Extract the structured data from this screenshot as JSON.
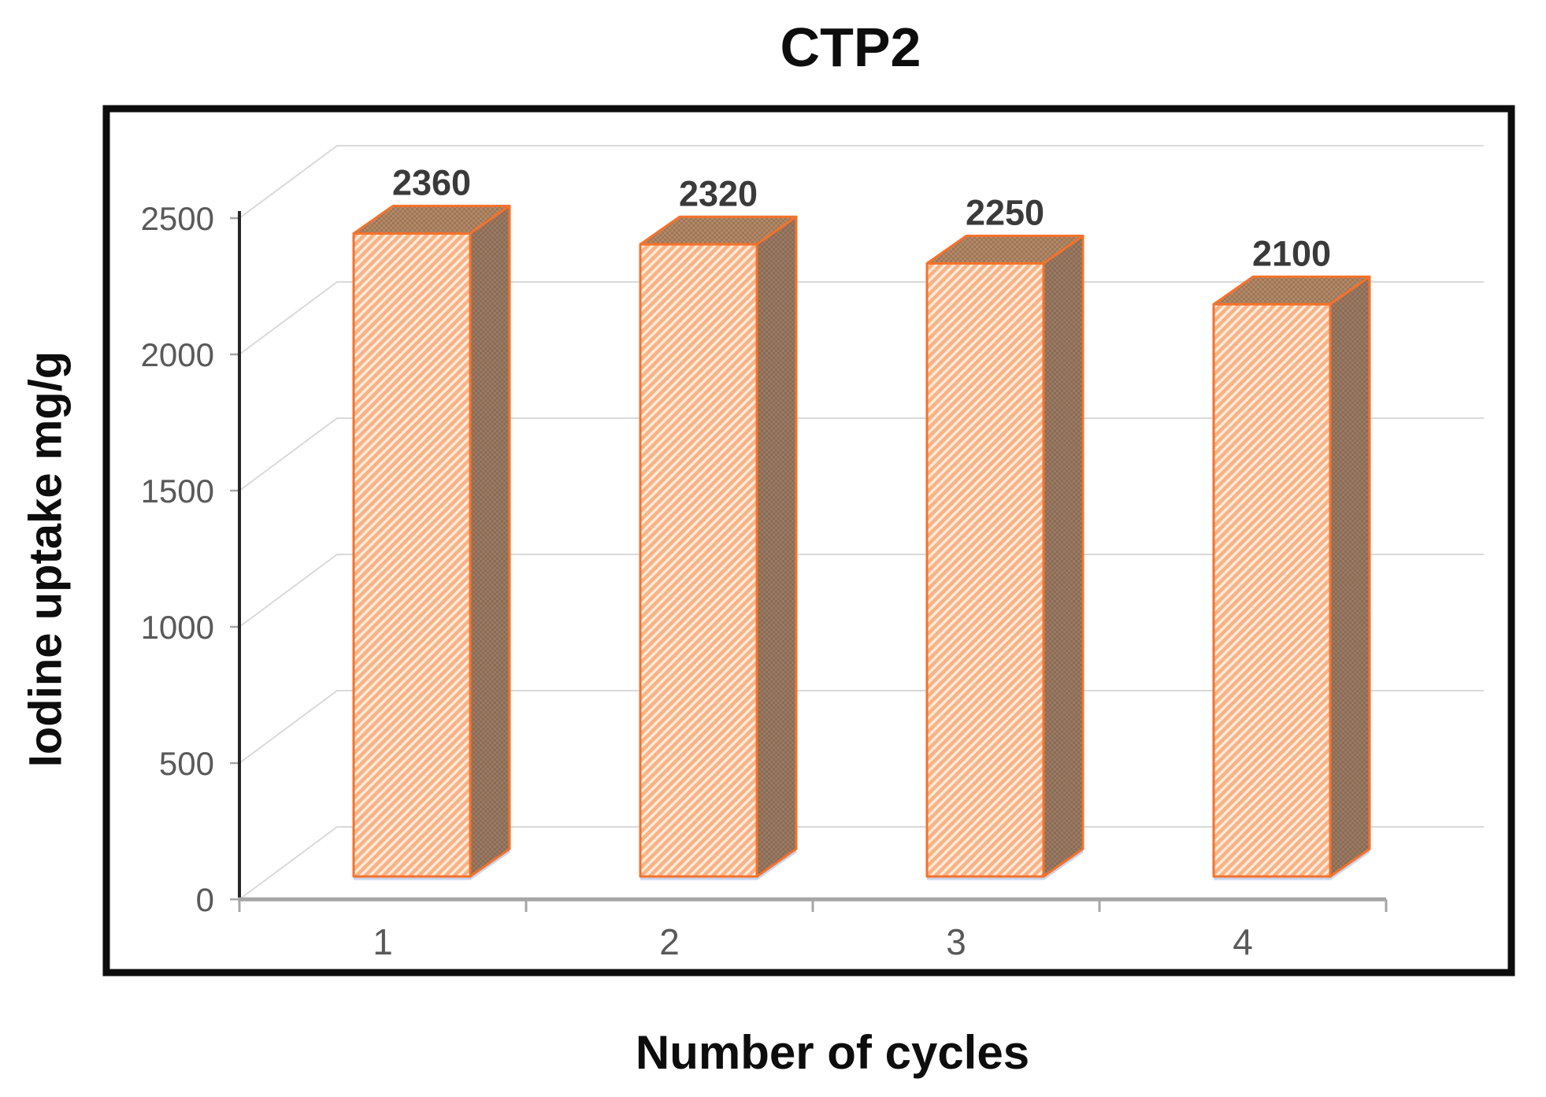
{
  "chart_data": {
    "type": "bar",
    "variant": "3d-column",
    "title": "CTP2",
    "xlabel": "Number of cycles",
    "ylabel": "Iodine uptake mg/g",
    "categories": [
      "1",
      "2",
      "3",
      "4"
    ],
    "values": [
      2360,
      2320,
      2250,
      2100
    ],
    "data_labels": [
      "2360",
      "2320",
      "2250",
      "2100"
    ],
    "ylim": [
      0,
      2500
    ],
    "yticks": [
      0,
      500,
      1000,
      1500,
      2000,
      2500
    ],
    "grid": true,
    "legend_position": "none",
    "colors": {
      "bar_hatch_orange": "#F9B285",
      "bar_hatch_cream": "#FCEBDA",
      "bar_side_dark": "#8A6B55",
      "bar_side_light": "#9A7A63",
      "bar_top_dark": "#9D7659",
      "bar_top_light": "#B28A66",
      "bar_outline": "#F5722B",
      "bar_shadow": "#C9D6EE",
      "gridline": "#D9D9D9",
      "x_axis_line": "#A6A6A6",
      "y_axis_line": "#262626",
      "plot_border": "#0d0d0d",
      "tick_label": "#595959",
      "data_label": "#3A3A3A",
      "title_color": "#0d0d0d"
    }
  }
}
